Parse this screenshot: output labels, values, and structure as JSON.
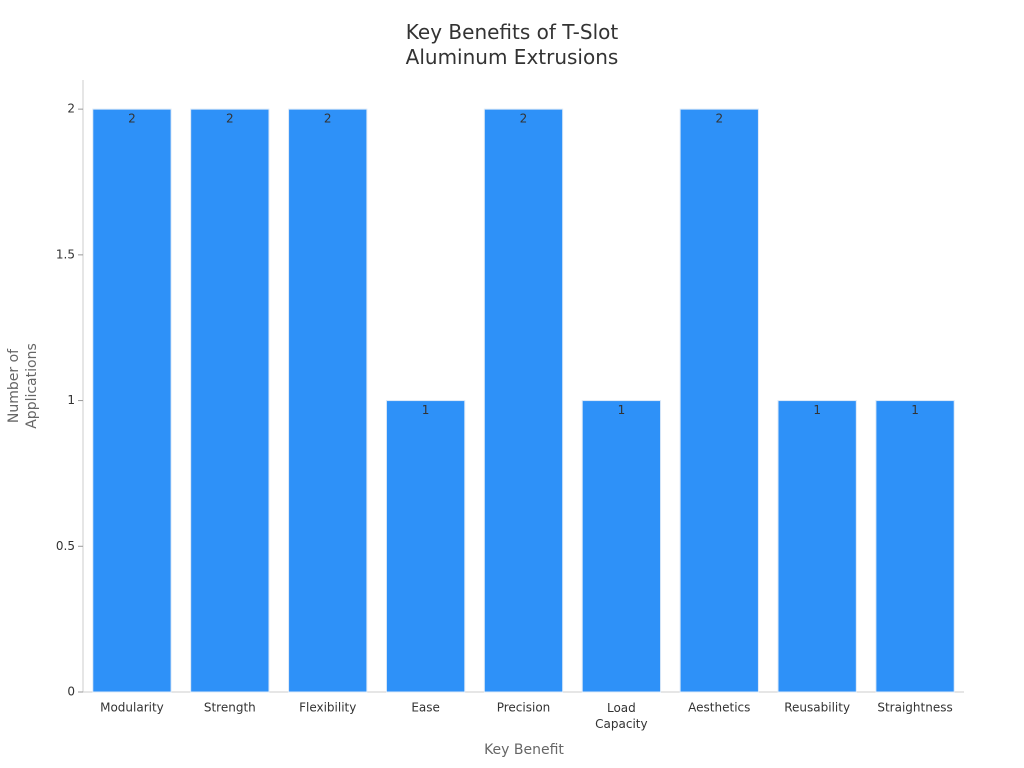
{
  "chart_data": {
    "type": "bar",
    "title": "Key Benefits of T-Slot Aluminum Extrusions",
    "x_label": "Key Benefit",
    "y_label": "Number of Applications",
    "categories": [
      "Modularity",
      "Strength",
      "Flexibility",
      "Ease",
      "Precision",
      "Load Capacity",
      "Aesthetics",
      "Reusability",
      "Straightness"
    ],
    "values": [
      2,
      2,
      2,
      1,
      2,
      1,
      2,
      1,
      1
    ],
    "color": "#2e91f8",
    "ylim": [
      0,
      2.1
    ],
    "yticks": [
      0,
      0.5,
      1,
      1.5,
      2
    ],
    "grid": false
  }
}
